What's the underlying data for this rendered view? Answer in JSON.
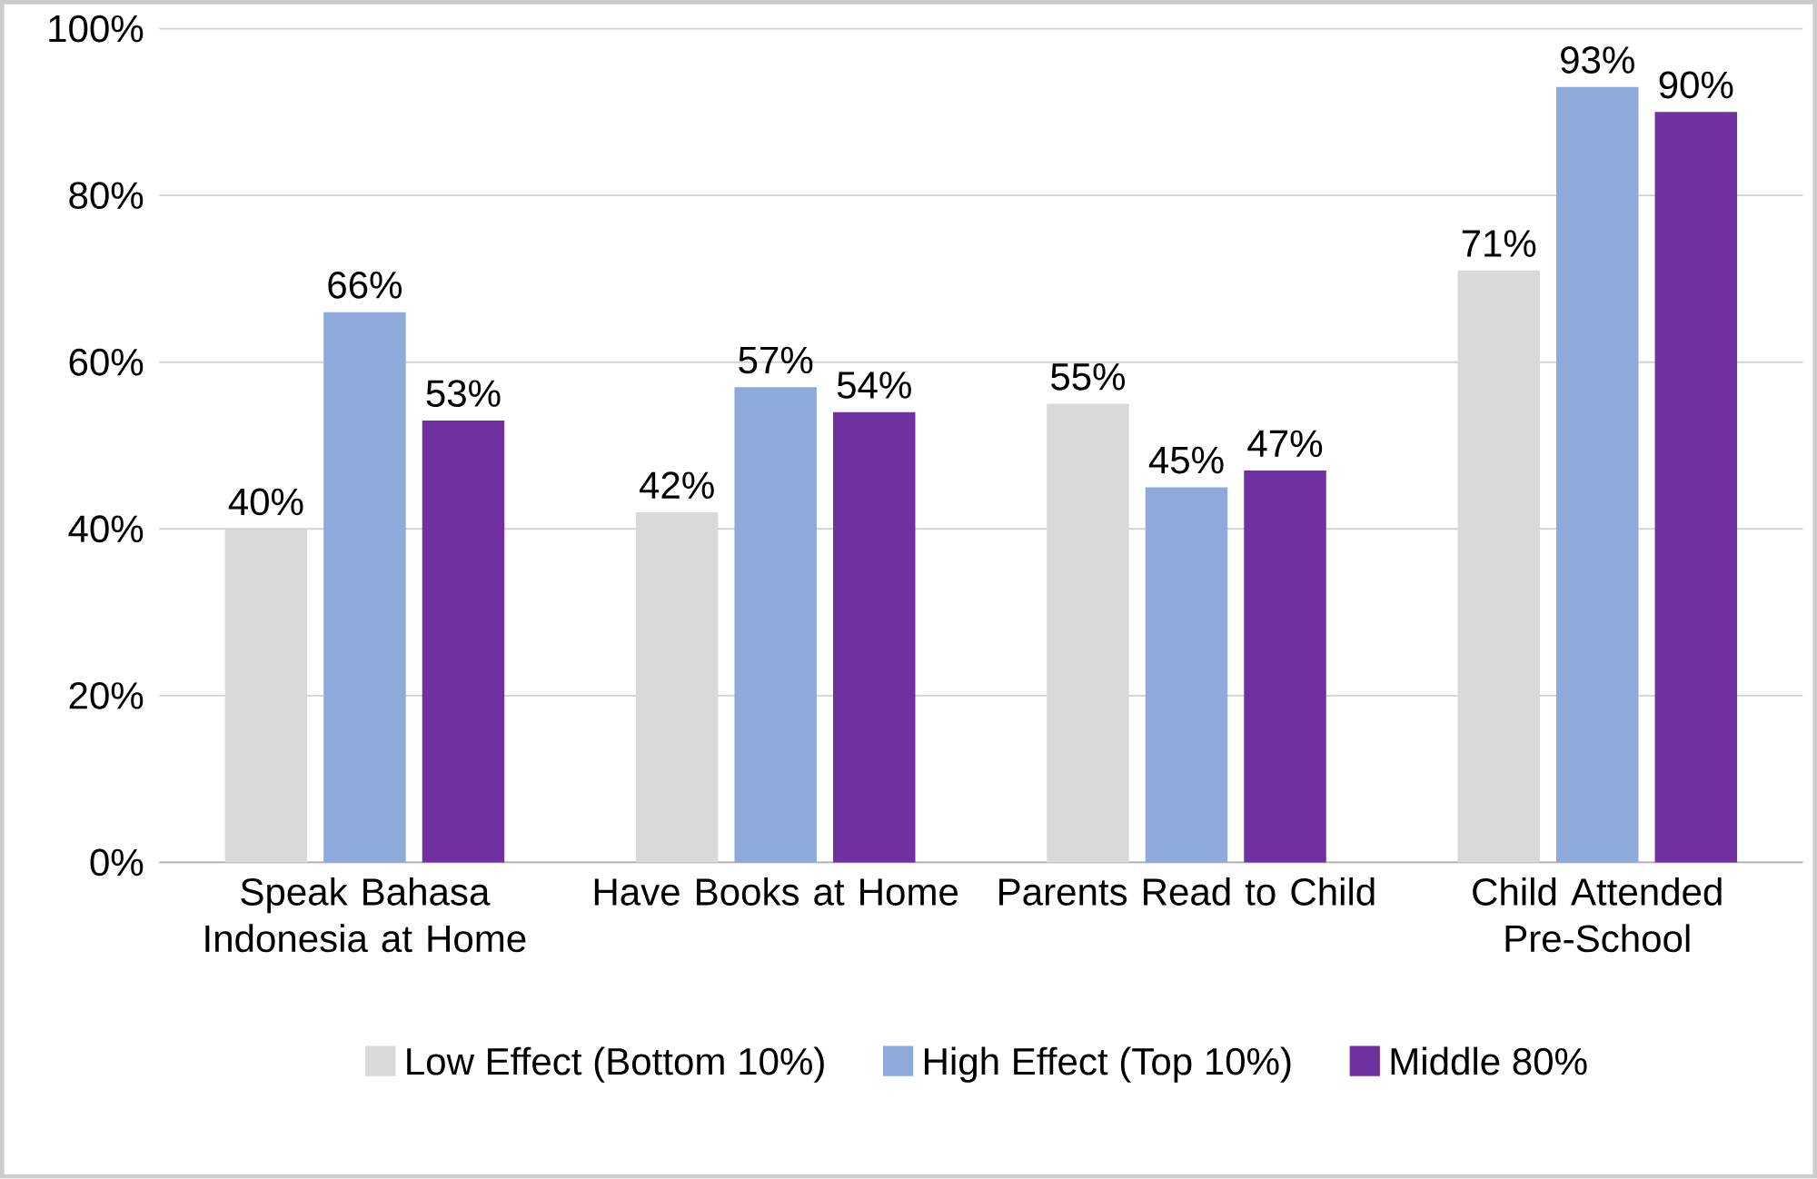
{
  "chart_data": {
    "type": "bar",
    "categories": [
      "Speak Bahasa Indonesia at Home",
      "Have Books at Home",
      "Parents Read to Child",
      "Child Attended Pre-School"
    ],
    "series": [
      {
        "name": "Low Effect (Bottom 10%)",
        "color": "#d9d9d9",
        "values": [
          40,
          42,
          55,
          71
        ],
        "value_labels": [
          "40%",
          "42%",
          "55%",
          "71%"
        ]
      },
      {
        "name": "High Effect (Top 10%)",
        "color": "#8eaadb",
        "values": [
          66,
          57,
          45,
          93
        ],
        "value_labels": [
          "66%",
          "57%",
          "45%",
          "93%"
        ]
      },
      {
        "name": "Middle 80%",
        "color": "#7030a0",
        "values": [
          53,
          54,
          47,
          90
        ],
        "value_labels": [
          "53%",
          "54%",
          "47%",
          "90%"
        ]
      }
    ],
    "ylim": [
      0,
      100
    ],
    "yticks": [
      {
        "value": 0,
        "label": "0%"
      },
      {
        "value": 20,
        "label": "20%"
      },
      {
        "value": 40,
        "label": "40%"
      },
      {
        "value": 60,
        "label": "60%"
      },
      {
        "value": 80,
        "label": "80%"
      },
      {
        "value": 100,
        "label": "100%"
      }
    ],
    "grid": "y",
    "legend": "bottom"
  }
}
